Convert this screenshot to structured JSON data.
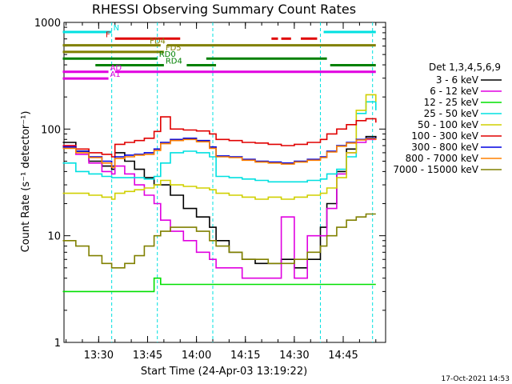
{
  "chart_data": {
    "type": "line",
    "title": "RHESSI Observing Summary Count Rates",
    "ylabel": "Count Rate (s⁻¹ detector⁻¹)",
    "xlabel": "Start Time (24-Apr-03 13:19:22)",
    "yscale": "log",
    "ylim": [
      1,
      1000
    ],
    "xlim": [
      "13:19:22",
      "14:58:00"
    ],
    "x_ticks": [
      "13:30",
      "13:45",
      "14:00",
      "14:15",
      "14:30",
      "14:45"
    ],
    "y_ticks": [
      "1",
      "10",
      "100",
      "1000"
    ],
    "legend_title": "Det 1,3,4,5,6,9",
    "legend_placement": "right",
    "timestamp": "17-Oct-2021 14:53",
    "flags": [
      {
        "label": "N",
        "color": "#00e0e0",
        "segments": [
          [
            "13:19",
            "13:34"
          ],
          [
            "14:39",
            "14:55"
          ]
        ]
      },
      {
        "label": "F",
        "color": "#e00000",
        "segments": [
          [
            "13:35",
            "13:55"
          ],
          [
            "14:23",
            "14:25"
          ],
          [
            "14:26",
            "14:29"
          ],
          [
            "14:32",
            "14:37"
          ]
        ]
      },
      {
        "label": "FD4",
        "color": "#808000",
        "segments": [
          [
            "13:19",
            "13:49"
          ],
          [
            "13:51",
            "14:55"
          ]
        ]
      },
      {
        "label": "FD5",
        "color": "#808000",
        "segments": [
          [
            "13:19",
            "13:50"
          ]
        ]
      },
      {
        "label": "RD0",
        "color": "#008000",
        "segments": [
          [
            "13:19",
            "13:48"
          ],
          [
            "14:03",
            "14:40"
          ]
        ]
      },
      {
        "label": "RD4",
        "color": "#008000",
        "segments": [
          [
            "13:29",
            "13:50"
          ],
          [
            "13:57",
            "14:06"
          ],
          [
            "14:41",
            "14:55"
          ]
        ]
      },
      {
        "label": "AD",
        "color": "#e000e0",
        "segments": [
          [
            "13:19",
            "13:33"
          ],
          [
            "13:35",
            "14:55"
          ]
        ]
      },
      {
        "label": "A1",
        "color": "#e000e0",
        "segments": [
          [
            "13:19",
            "13:33"
          ]
        ]
      }
    ],
    "vlines": [
      {
        "time": "13:34",
        "color": "#00e0e0",
        "style": "dashed"
      },
      {
        "time": "13:48",
        "color": "#00e0e0",
        "style": "dashed"
      },
      {
        "time": "14:05",
        "color": "#00e0e0",
        "style": "dashed"
      },
      {
        "time": "14:38",
        "color": "#00e0e0",
        "style": "dashed"
      },
      {
        "time": "14:54",
        "color": "#00e0e0",
        "style": "dashed"
      }
    ],
    "x": [
      "13:19",
      "13:23",
      "13:27",
      "13:31",
      "13:34",
      "13:35",
      "13:38",
      "13:41",
      "13:44",
      "13:47",
      "13:49",
      "13:52",
      "13:56",
      "14:00",
      "14:04",
      "14:06",
      "14:10",
      "14:14",
      "14:18",
      "14:22",
      "14:26",
      "14:30",
      "14:34",
      "14:38",
      "14:40",
      "14:43",
      "14:46",
      "14:49",
      "14:52",
      "14:55"
    ],
    "series": [
      {
        "name": "3 - 6 keV",
        "color": "#000000",
        "values": [
          75,
          62,
          50,
          45,
          42,
          60,
          50,
          42,
          35,
          30,
          30,
          24,
          18,
          15,
          12,
          9,
          7,
          6,
          5.5,
          5.5,
          6,
          5,
          6,
          12,
          20,
          40,
          65,
          80,
          85,
          82
        ]
      },
      {
        "name": "6 - 12 keV",
        "color": "#e000e0",
        "values": [
          70,
          58,
          48,
          40,
          38,
          45,
          38,
          30,
          24,
          20,
          14,
          11,
          9,
          7,
          6,
          5,
          5,
          4,
          4,
          4,
          15,
          4,
          10,
          10,
          18,
          38,
          60,
          75,
          80,
          80
        ]
      },
      {
        "name": "12 - 25 keV",
        "color": "#00e000",
        "values": [
          3,
          3,
          3,
          3,
          3,
          3,
          3,
          3,
          3,
          4,
          3.5,
          3.5,
          3.5,
          3.5,
          3.5,
          3.5,
          3.5,
          3.5,
          3.5,
          3.5,
          3.5,
          3.5,
          3.5,
          3.5,
          3.5,
          3.5,
          3.5,
          3.5,
          3.5,
          3.5
        ]
      },
      {
        "name": "25 - 50 keV",
        "color": "#00e0e0",
        "values": [
          48,
          40,
          38,
          36,
          35,
          35,
          35,
          35,
          34,
          36,
          48,
          60,
          62,
          60,
          55,
          36,
          35,
          34,
          33,
          32,
          32,
          32,
          33,
          34,
          38,
          42,
          55,
          140,
          180,
          150
        ]
      },
      {
        "name": "50 - 100 keV",
        "color": "#d0d000",
        "values": [
          25,
          25,
          24,
          23,
          22,
          25,
          26,
          27,
          28,
          30,
          33,
          30,
          29,
          28,
          27,
          25,
          24,
          23,
          22,
          23,
          22,
          23,
          24,
          25,
          28,
          35,
          60,
          150,
          210,
          180
        ]
      },
      {
        "name": "100 - 300 keV",
        "color": "#e00000",
        "values": [
          70,
          65,
          60,
          58,
          55,
          72,
          75,
          78,
          82,
          95,
          130,
          100,
          98,
          96,
          90,
          80,
          78,
          75,
          74,
          72,
          70,
          72,
          75,
          80,
          90,
          100,
          110,
          120,
          125,
          115
        ]
      },
      {
        "name": "300 - 800 keV",
        "color": "#0000e0",
        "values": [
          68,
          62,
          55,
          50,
          45,
          55,
          57,
          58,
          60,
          65,
          75,
          80,
          82,
          78,
          68,
          56,
          55,
          52,
          50,
          49,
          48,
          50,
          52,
          55,
          62,
          70,
          75,
          80,
          82,
          80
        ]
      },
      {
        "name": "800 - 7000 keV",
        "color": "#ff8000",
        "values": [
          66,
          60,
          54,
          48,
          44,
          53,
          55,
          57,
          58,
          63,
          73,
          78,
          80,
          76,
          66,
          55,
          54,
          51,
          49,
          48,
          47,
          49,
          51,
          54,
          61,
          69,
          74,
          79,
          81,
          79
        ]
      },
      {
        "name": "7000 - 15000 keV",
        "color": "#808000",
        "values": [
          9,
          8,
          6.5,
          5.5,
          5,
          5,
          5.5,
          6.5,
          8,
          10,
          11,
          12,
          12,
          11,
          9,
          8,
          7,
          6,
          6,
          5.5,
          5.5,
          6,
          7,
          8,
          10,
          12,
          14,
          15,
          16,
          16
        ]
      }
    ]
  }
}
